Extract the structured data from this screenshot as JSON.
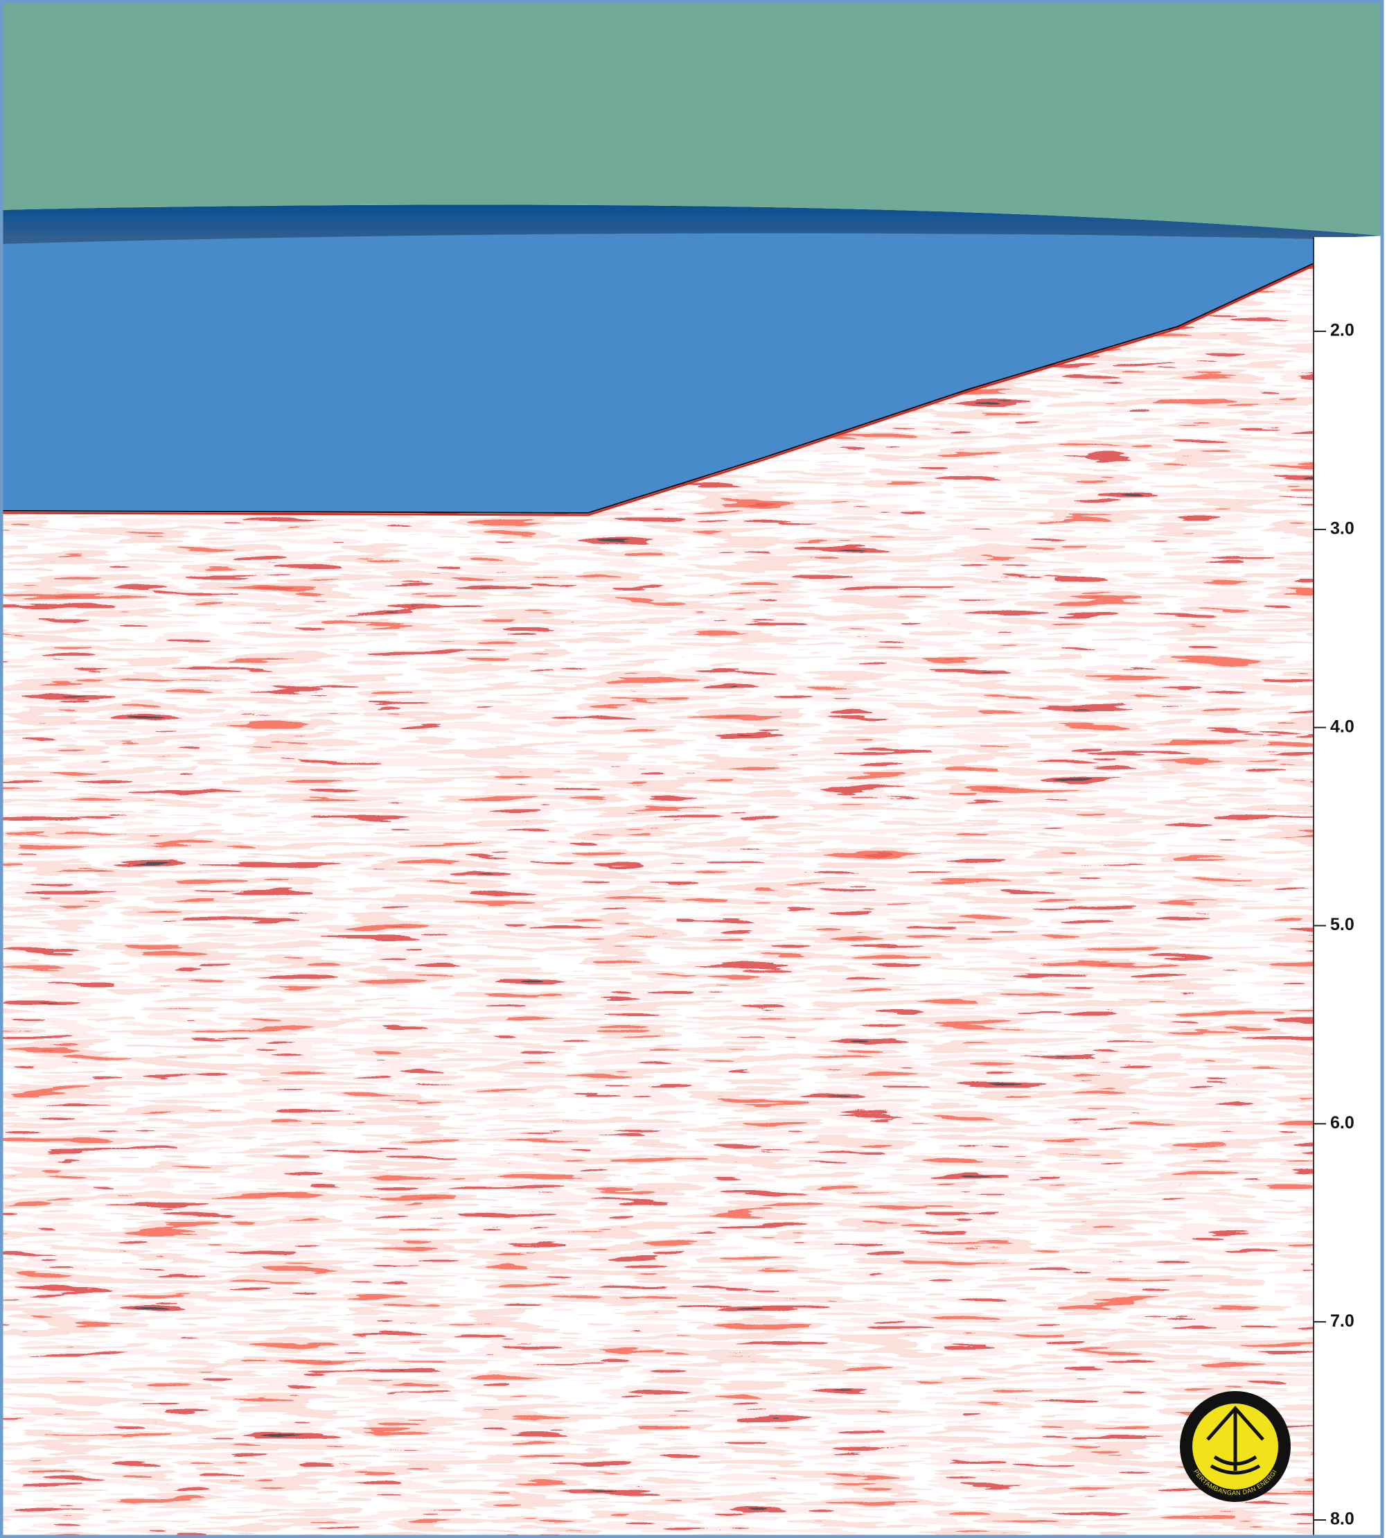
{
  "time_axis": {
    "ticks": [
      {
        "value": 2,
        "label": "2.0"
      },
      {
        "value": 3,
        "label": "3.0"
      },
      {
        "value": 4,
        "label": "4.0"
      },
      {
        "value": 5,
        "label": "5.0"
      },
      {
        "value": 6,
        "label": "6.0"
      },
      {
        "value": 7,
        "label": "7.0"
      },
      {
        "value": 8,
        "label": "8.0"
      }
    ]
  },
  "logo": {
    "text": "PERTAMBANGAN DAN ENERGI"
  }
}
